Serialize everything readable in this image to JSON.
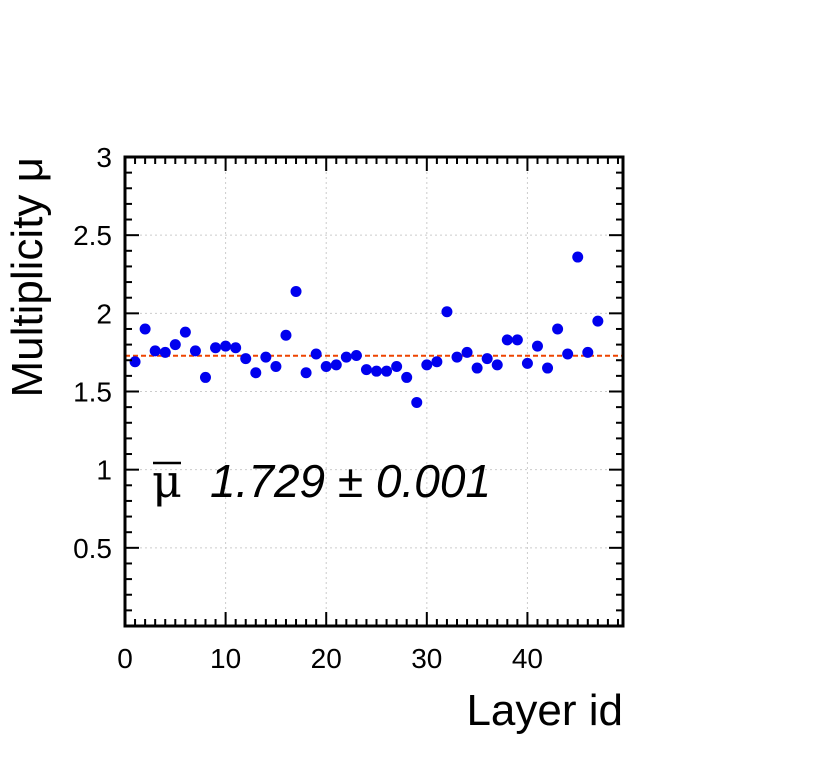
{
  "chart_data": {
    "type": "scatter",
    "xlabel": "Layer id",
    "ylabel": "Multiplicity μ",
    "xlim": [
      0,
      49.5
    ],
    "ylim": [
      0,
      3
    ],
    "xticks": [
      0,
      10,
      20,
      30,
      40
    ],
    "yticks": [
      0.5,
      1,
      1.5,
      2,
      2.5,
      3
    ],
    "xtick_labels": [
      "0",
      "10",
      "20",
      "30",
      "40"
    ],
    "ytick_labels": [
      "0.5",
      "1",
      "1.5",
      "2",
      "2.5",
      "3"
    ],
    "grid": true,
    "series": [
      {
        "color": "#0000ee",
        "x": [
          1,
          2,
          3,
          4,
          5,
          6,
          7,
          8,
          9,
          10,
          11,
          12,
          13,
          14,
          15,
          16,
          17,
          18,
          19,
          20,
          21,
          22,
          23,
          24,
          25,
          26,
          27,
          28,
          29,
          30,
          31,
          32,
          33,
          34,
          35,
          36,
          37,
          38,
          39,
          40,
          41,
          42,
          43,
          44,
          45,
          46,
          47
        ],
        "y": [
          1.69,
          1.9,
          1.76,
          1.75,
          1.8,
          1.88,
          1.76,
          1.59,
          1.78,
          1.79,
          1.78,
          1.71,
          1.62,
          1.72,
          1.66,
          1.86,
          2.14,
          1.62,
          1.74,
          1.66,
          1.67,
          1.72,
          1.73,
          1.64,
          1.63,
          1.63,
          1.66,
          1.59,
          1.43,
          1.67,
          1.69,
          2.01,
          1.72,
          1.75,
          1.65,
          1.71,
          1.67,
          1.83,
          1.83,
          1.68,
          1.79,
          1.65,
          1.9,
          1.74,
          2.36,
          1.75,
          1.95
        ]
      }
    ],
    "reference_line": {
      "y": 1.729,
      "color": "#ee4400"
    },
    "annotation": {
      "symbol": "μ",
      "text": "1.729 ± 0.001"
    }
  }
}
